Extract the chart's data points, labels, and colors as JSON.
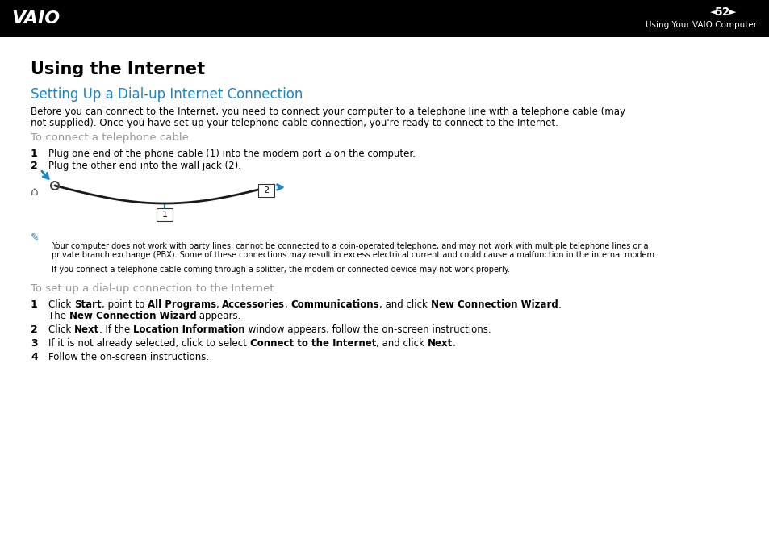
{
  "header_bg": "#000000",
  "header_text_color": "#ffffff",
  "header_page_num": "52",
  "header_subtitle": "Using Your VAIO Computer",
  "page_title": "Using the Internet",
  "section_title": "Setting Up a Dial-up Internet Connection",
  "section_title_color": "#1a85c8",
  "body_color": "#000000",
  "gray_heading_color": "#999999",
  "body_text_1a": "Before you can connect to the Internet, you need to connect your computer to a telephone line with a telephone cable (may",
  "body_text_1b": "not supplied). Once you have set up your telephone cable connection, you're ready to connect to the Internet.",
  "subheading_1": "To connect a telephone cable",
  "note_text_1a": "Your computer does not work with party lines, cannot be connected to a coin-operated telephone, and may not work with multiple telephone lines or a",
  "note_text_1b": "private branch exchange (PBX). Some of these connections may result in excess electrical current and could cause a malfunction in the internal modem.",
  "note_text_2": "If you connect a telephone cable coming through a splitter, the modem or connected device may not work properly.",
  "subheading_2": "To set up a dial-up connection to the Internet",
  "step_a4_text": "Follow the on-screen instructions.",
  "bg_color": "#ffffff"
}
